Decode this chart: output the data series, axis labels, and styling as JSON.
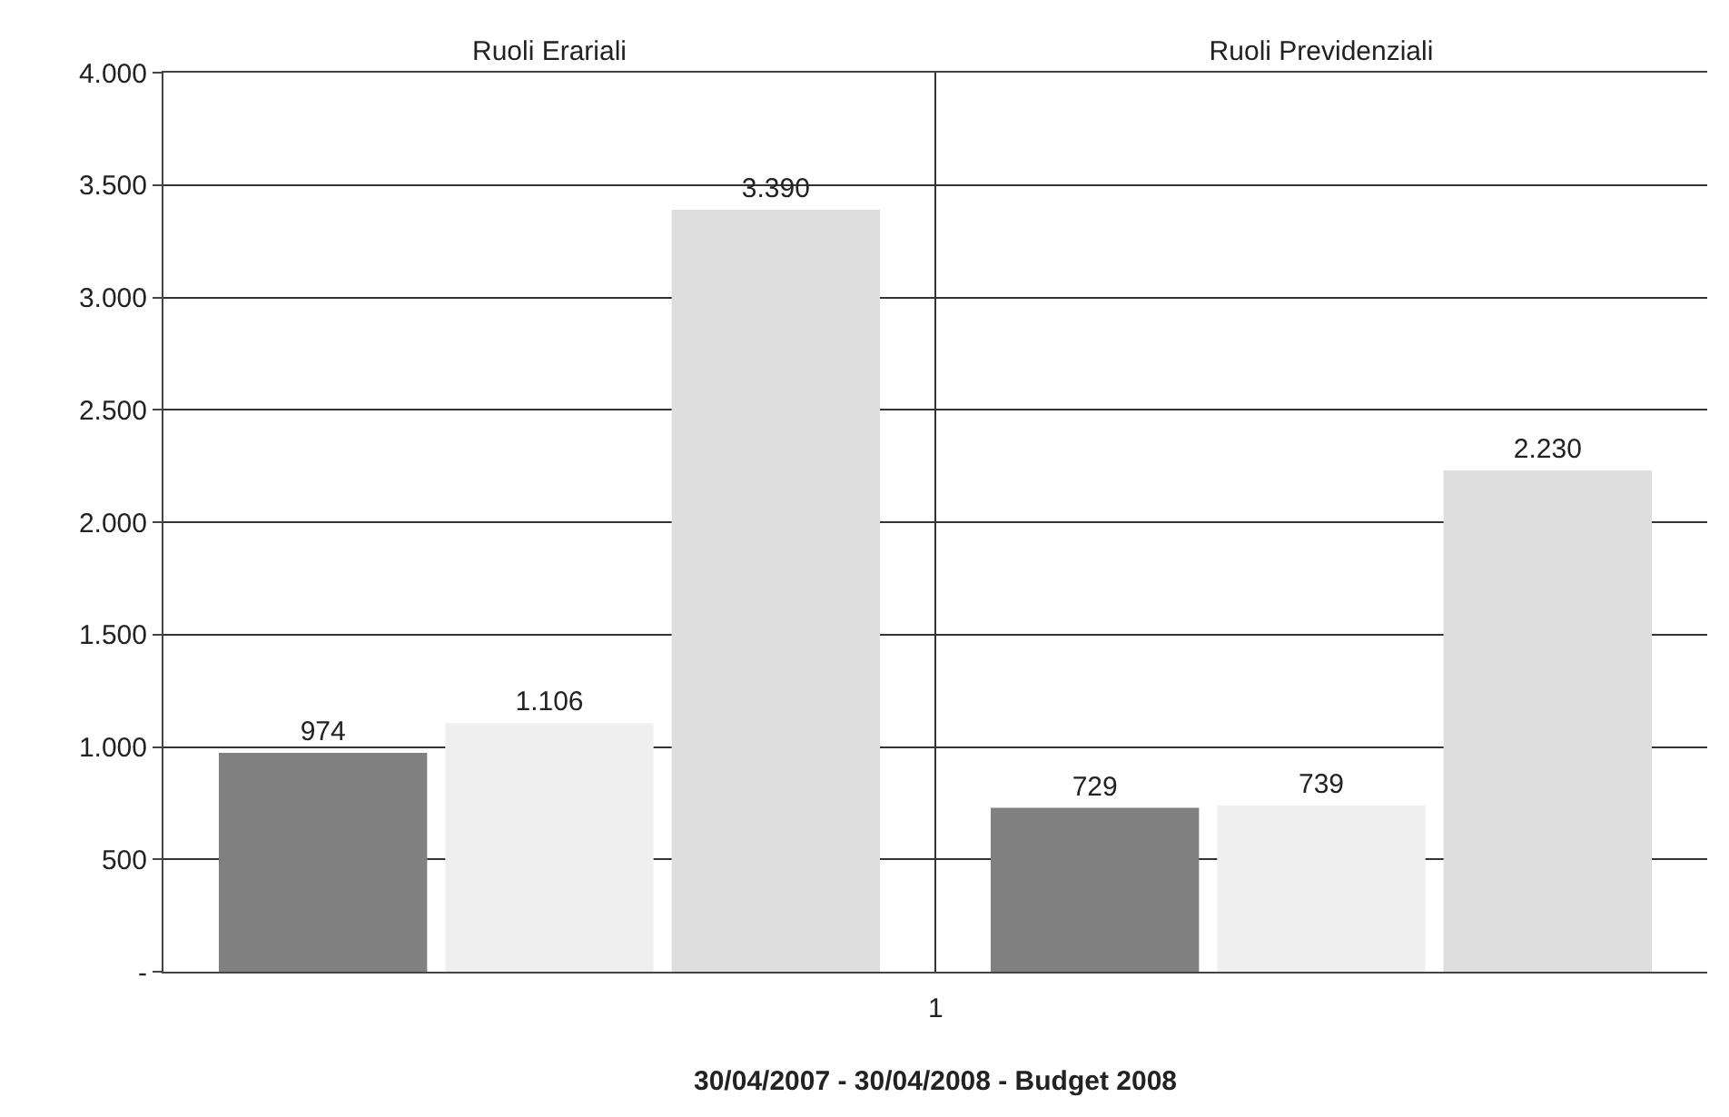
{
  "chart_data": {
    "type": "bar",
    "xlabel": "30/04/2007 - 30/04/2008 - Budget 2008",
    "categories": [
      "Ruoli Erariali",
      "Ruoli Previdenziali"
    ],
    "series": [
      {
        "color": "#808080",
        "values": [
          974,
          729
        ],
        "value_labels": [
          "974",
          "729"
        ]
      },
      {
        "color": "#efefef",
        "values": [
          1106,
          739
        ],
        "value_labels": [
          "1.106",
          "739"
        ]
      },
      {
        "color": "#dedede",
        "values": [
          3390,
          2230
        ],
        "value_labels": [
          "3.390",
          "2.230"
        ]
      }
    ],
    "annotations": [
      "1"
    ],
    "ylim": [
      0,
      4000
    ],
    "yticks": [
      {
        "value": 0,
        "label": "-"
      },
      500,
      {
        "value": 1000,
        "label": "1.000"
      },
      {
        "value": 1500,
        "label": "1.500"
      },
      {
        "value": 2000,
        "label": "2.000"
      },
      {
        "value": 2500,
        "label": "2.500"
      },
      {
        "value": 3000,
        "label": "3.000"
      },
      {
        "value": 3500,
        "label": "3.500"
      },
      {
        "value": 4000,
        "label": "4.000"
      }
    ],
    "grid": true
  }
}
